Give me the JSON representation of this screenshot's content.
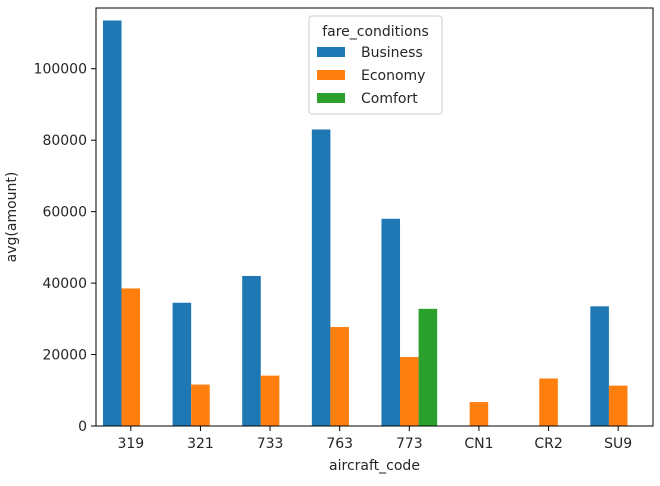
{
  "chart_data": {
    "type": "bar",
    "title": "",
    "xlabel": "aircraft_code",
    "ylabel": "avg(amount)",
    "categories": [
      "319",
      "321",
      "733",
      "763",
      "773",
      "CN1",
      "CR2",
      "SU9"
    ],
    "ylim": [
      0,
      117000
    ],
    "yticks": [
      0,
      20000,
      40000,
      60000,
      80000,
      100000
    ],
    "grid": false,
    "legend": {
      "title": "fare_conditions",
      "placement": "top-center"
    },
    "series": [
      {
        "name": "Business",
        "color": "#1f77b4",
        "values": [
          113500,
          34500,
          42000,
          83000,
          58000,
          null,
          null,
          33500
        ]
      },
      {
        "name": "Economy",
        "color": "#ff7f0e",
        "values": [
          38500,
          11600,
          14100,
          27700,
          19300,
          6700,
          13300,
          11300
        ]
      },
      {
        "name": "Comfort",
        "color": "#2ca02c",
        "values": [
          null,
          null,
          null,
          null,
          32800,
          null,
          null,
          null
        ]
      }
    ]
  }
}
